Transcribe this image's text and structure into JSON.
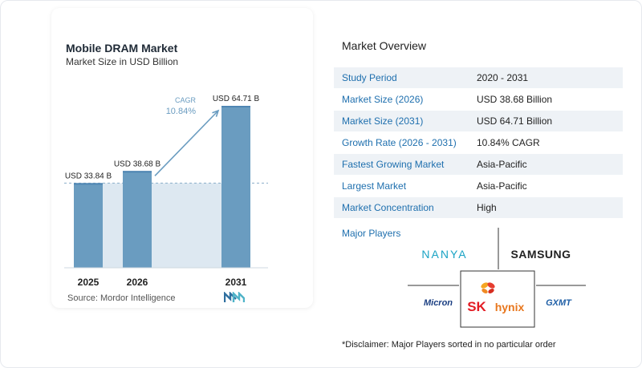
{
  "chart_data": {
    "type": "bar",
    "title": "Mobile DRAM Market",
    "subtitle": "Market Size in USD Billion",
    "categories": [
      "2025",
      "2026",
      "2031"
    ],
    "values": [
      33.84,
      38.68,
      64.71
    ],
    "value_labels": [
      "USD 33.84 B",
      "USD 38.68 B",
      "USD 64.71 B"
    ],
    "cagr_label": "CAGR",
    "cagr_value": "10.84%",
    "colors": {
      "bar": "#6a9cc0",
      "bar_top": "#4f86b3",
      "shade": "#dde8f1",
      "arrow": "#6a9cc0",
      "cagr": "#6a9cc0"
    },
    "xlabel": "",
    "ylabel": ""
  },
  "source": "Source:  Mordor Intelligence",
  "overview": {
    "title": "Market Overview",
    "rows": [
      {
        "key": "Study Period",
        "value": "2020 - 2031"
      },
      {
        "key": "Market Size (2026)",
        "value": "USD 38.68 Billion"
      },
      {
        "key": "Market Size (2031)",
        "value": "USD 64.71 Billion"
      },
      {
        "key": "Growth Rate (2026 - 2031)",
        "value": "10.84% CAGR"
      },
      {
        "key": "Fastest Growing Market",
        "value": "Asia-Pacific"
      },
      {
        "key": "Largest Market",
        "value": "Asia-Pacific"
      },
      {
        "key": "Market Concentration",
        "value": "High"
      }
    ]
  },
  "major_players": {
    "title": "Major Players",
    "logos": [
      "NANYA",
      "SAMSUNG",
      "Micron",
      "SK",
      "hynix",
      "GXMT"
    ]
  },
  "disclaimer": "*Disclaimer: Major Players sorted in no particular order"
}
